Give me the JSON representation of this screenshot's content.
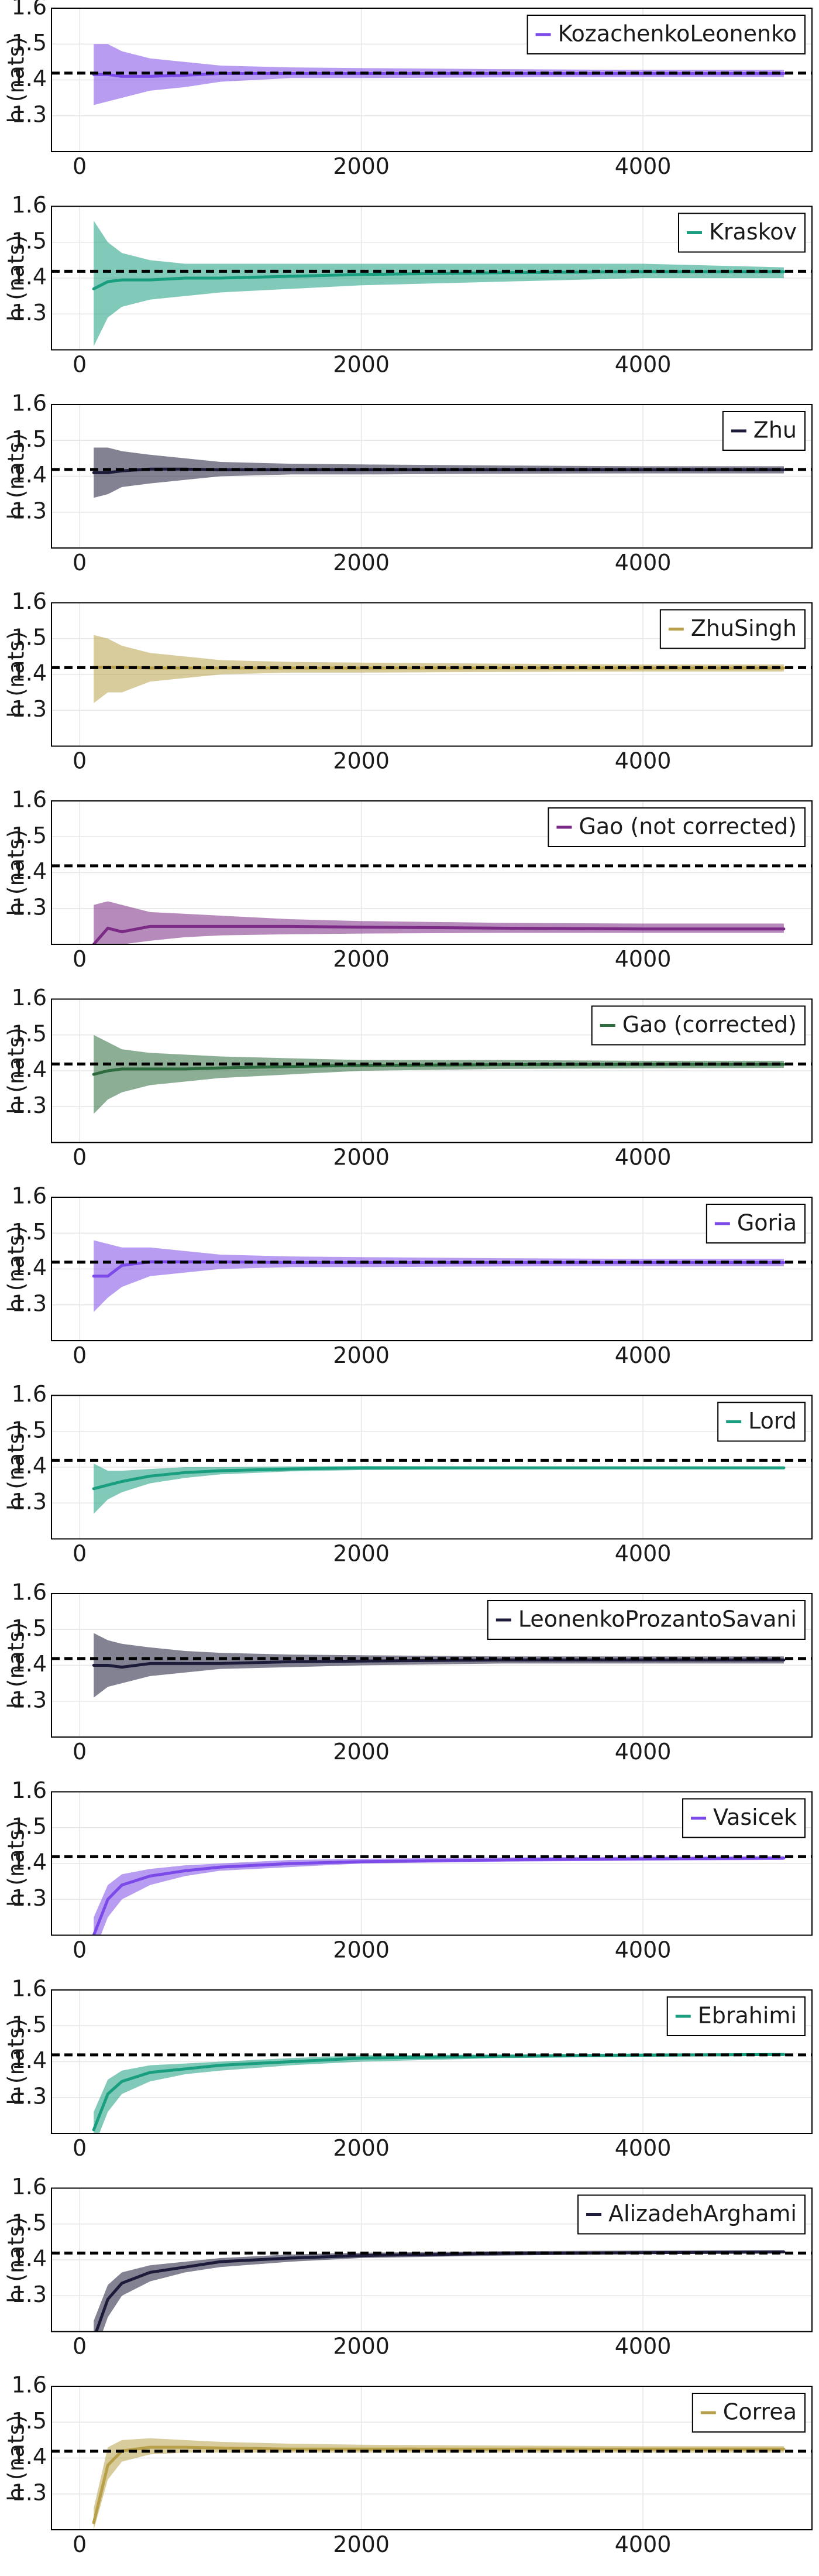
{
  "chart_data": [
    {
      "type": "line",
      "title": "",
      "xlabel": "",
      "ylabel": "h (nats)",
      "xlim": [
        -200,
        5200
      ],
      "ylim": [
        1.2,
        1.6
      ],
      "xticks": [
        0,
        2000,
        4000
      ],
      "yticks": [
        1.3,
        1.4,
        1.5,
        1.6
      ],
      "grid": true,
      "legend_position": "top-right",
      "reference_line": 1.419,
      "series": [
        {
          "name": "KozachenkoLeonenko",
          "color": "#7b4ae8",
          "x": [
            100,
            200,
            300,
            500,
            750,
            1000,
            1500,
            2000,
            3000,
            4000,
            5000
          ],
          "mean": [
            1.415,
            1.415,
            1.41,
            1.41,
            1.413,
            1.418,
            1.418,
            1.418,
            1.418,
            1.418,
            1.418
          ],
          "lower": [
            1.33,
            1.34,
            1.35,
            1.37,
            1.38,
            1.395,
            1.405,
            1.405,
            1.407,
            1.408,
            1.408
          ],
          "upper": [
            1.5,
            1.5,
            1.48,
            1.46,
            1.45,
            1.44,
            1.435,
            1.433,
            1.43,
            1.428,
            1.428
          ]
        }
      ]
    },
    {
      "type": "line",
      "title": "",
      "xlabel": "",
      "ylabel": "h (nats)",
      "xlim": [
        -200,
        5200
      ],
      "ylim": [
        1.2,
        1.6
      ],
      "xticks": [
        0,
        2000,
        4000
      ],
      "yticks": [
        1.3,
        1.4,
        1.5,
        1.6
      ],
      "grid": true,
      "legend_position": "top-right",
      "reference_line": 1.419,
      "series": [
        {
          "name": "Kraskov",
          "color": "#1a9e80",
          "x": [
            100,
            200,
            300,
            500,
            750,
            1000,
            1500,
            2000,
            3000,
            4000,
            5000
          ],
          "mean": [
            1.37,
            1.39,
            1.395,
            1.395,
            1.4,
            1.4,
            1.405,
            1.41,
            1.415,
            1.418,
            1.418
          ],
          "lower": [
            1.21,
            1.29,
            1.32,
            1.34,
            1.35,
            1.36,
            1.37,
            1.38,
            1.39,
            1.4,
            1.4
          ],
          "upper": [
            1.56,
            1.5,
            1.47,
            1.45,
            1.44,
            1.44,
            1.44,
            1.44,
            1.44,
            1.44,
            1.43
          ]
        }
      ]
    },
    {
      "type": "line",
      "title": "",
      "xlabel": "",
      "ylabel": "h (nats)",
      "xlim": [
        -200,
        5200
      ],
      "ylim": [
        1.2,
        1.6
      ],
      "xticks": [
        0,
        2000,
        4000
      ],
      "yticks": [
        1.3,
        1.4,
        1.5,
        1.6
      ],
      "grid": true,
      "legend_position": "top-right",
      "reference_line": 1.419,
      "series": [
        {
          "name": "Zhu",
          "color": "#1c1c3a",
          "x": [
            100,
            200,
            300,
            500,
            750,
            1000,
            1500,
            2000,
            3000,
            4000,
            5000
          ],
          "mean": [
            1.41,
            1.41,
            1.415,
            1.42,
            1.42,
            1.418,
            1.418,
            1.418,
            1.418,
            1.418,
            1.418
          ],
          "lower": [
            1.34,
            1.35,
            1.37,
            1.38,
            1.39,
            1.4,
            1.405,
            1.405,
            1.407,
            1.408,
            1.408
          ],
          "upper": [
            1.48,
            1.48,
            1.47,
            1.46,
            1.45,
            1.44,
            1.435,
            1.433,
            1.43,
            1.428,
            1.428
          ]
        }
      ]
    },
    {
      "type": "line",
      "title": "",
      "xlabel": "",
      "ylabel": "h (nats)",
      "xlim": [
        -200,
        5200
      ],
      "ylim": [
        1.2,
        1.6
      ],
      "xticks": [
        0,
        2000,
        4000
      ],
      "yticks": [
        1.3,
        1.4,
        1.5,
        1.6
      ],
      "grid": true,
      "legend_position": "top-right",
      "reference_line": 1.419,
      "series": [
        {
          "name": "ZhuSingh",
          "color": "#b8a04a",
          "x": [
            100,
            200,
            300,
            500,
            750,
            1000,
            1500,
            2000,
            3000,
            4000,
            5000
          ],
          "mean": [
            1.42,
            1.42,
            1.42,
            1.418,
            1.418,
            1.418,
            1.418,
            1.418,
            1.418,
            1.418,
            1.418
          ],
          "lower": [
            1.32,
            1.35,
            1.35,
            1.38,
            1.39,
            1.4,
            1.405,
            1.405,
            1.407,
            1.408,
            1.408
          ],
          "upper": [
            1.51,
            1.5,
            1.48,
            1.46,
            1.45,
            1.44,
            1.435,
            1.433,
            1.43,
            1.428,
            1.428
          ]
        }
      ]
    },
    {
      "type": "line",
      "title": "",
      "xlabel": "",
      "ylabel": "h (nats)",
      "xlim": [
        -200,
        5200
      ],
      "ylim": [
        1.2,
        1.6
      ],
      "xticks": [
        0,
        2000,
        4000
      ],
      "yticks": [
        1.3,
        1.4,
        1.5,
        1.6
      ],
      "grid": true,
      "legend_position": "top-right",
      "reference_line": 1.419,
      "series": [
        {
          "name": "Gao (not corrected)",
          "color": "#7b2a85",
          "x": [
            100,
            200,
            300,
            500,
            750,
            1000,
            1500,
            2000,
            3000,
            4000,
            5000
          ],
          "mean": [
            1.2,
            1.245,
            1.235,
            1.25,
            1.25,
            1.25,
            1.25,
            1.248,
            1.245,
            1.243,
            1.243
          ],
          "lower": [
            1.18,
            1.19,
            1.2,
            1.21,
            1.22,
            1.225,
            1.228,
            1.23,
            1.232,
            1.232,
            1.232
          ],
          "upper": [
            1.31,
            1.32,
            1.31,
            1.29,
            1.285,
            1.28,
            1.27,
            1.265,
            1.26,
            1.258,
            1.258
          ]
        }
      ]
    },
    {
      "type": "line",
      "title": "",
      "xlabel": "",
      "ylabel": "h (nats)",
      "xlim": [
        -200,
        5200
      ],
      "ylim": [
        1.2,
        1.6
      ],
      "xticks": [
        0,
        2000,
        4000
      ],
      "yticks": [
        1.3,
        1.4,
        1.5,
        1.6
      ],
      "grid": true,
      "legend_position": "top-right",
      "reference_line": 1.419,
      "series": [
        {
          "name": "Gao (corrected)",
          "color": "#2e6b3e",
          "x": [
            100,
            200,
            300,
            500,
            750,
            1000,
            1500,
            2000,
            3000,
            4000,
            5000
          ],
          "mean": [
            1.39,
            1.4,
            1.405,
            1.405,
            1.405,
            1.408,
            1.412,
            1.415,
            1.417,
            1.418,
            1.418
          ],
          "lower": [
            1.28,
            1.32,
            1.34,
            1.36,
            1.37,
            1.38,
            1.39,
            1.4,
            1.405,
            1.407,
            1.408
          ],
          "upper": [
            1.5,
            1.48,
            1.46,
            1.45,
            1.445,
            1.44,
            1.435,
            1.43,
            1.43,
            1.428,
            1.428
          ]
        }
      ]
    },
    {
      "type": "line",
      "title": "",
      "xlabel": "",
      "ylabel": "h (nats)",
      "xlim": [
        -200,
        5200
      ],
      "ylim": [
        1.2,
        1.6
      ],
      "xticks": [
        0,
        2000,
        4000
      ],
      "yticks": [
        1.3,
        1.4,
        1.5,
        1.6
      ],
      "grid": true,
      "legend_position": "top-right",
      "reference_line": 1.419,
      "series": [
        {
          "name": "Goria",
          "color": "#7b4ae8",
          "x": [
            100,
            200,
            300,
            500,
            750,
            1000,
            1500,
            2000,
            3000,
            4000,
            5000
          ],
          "mean": [
            1.38,
            1.38,
            1.41,
            1.42,
            1.42,
            1.42,
            1.418,
            1.418,
            1.418,
            1.418,
            1.418
          ],
          "lower": [
            1.28,
            1.32,
            1.35,
            1.38,
            1.39,
            1.4,
            1.405,
            1.405,
            1.407,
            1.408,
            1.408
          ],
          "upper": [
            1.48,
            1.47,
            1.46,
            1.46,
            1.45,
            1.44,
            1.435,
            1.433,
            1.43,
            1.428,
            1.428
          ]
        }
      ]
    },
    {
      "type": "line",
      "title": "",
      "xlabel": "",
      "ylabel": "h (nats)",
      "xlim": [
        -200,
        5200
      ],
      "ylim": [
        1.2,
        1.6
      ],
      "xticks": [
        0,
        2000,
        4000
      ],
      "yticks": [
        1.3,
        1.4,
        1.5,
        1.6
      ],
      "grid": true,
      "legend_position": "top-right",
      "reference_line": 1.419,
      "series": [
        {
          "name": "Lord",
          "color": "#1a9e80",
          "x": [
            100,
            200,
            300,
            500,
            750,
            1000,
            1500,
            2000,
            3000,
            4000,
            5000
          ],
          "mean": [
            1.34,
            1.35,
            1.36,
            1.375,
            1.385,
            1.39,
            1.395,
            1.398,
            1.398,
            1.398,
            1.398
          ],
          "lower": [
            1.27,
            1.31,
            1.33,
            1.355,
            1.37,
            1.38,
            1.388,
            1.392,
            1.394,
            1.395,
            1.395
          ],
          "upper": [
            1.41,
            1.39,
            1.39,
            1.395,
            1.4,
            1.4,
            1.402,
            1.403,
            1.402,
            1.402,
            1.402
          ]
        }
      ]
    },
    {
      "type": "line",
      "title": "",
      "xlabel": "",
      "ylabel": "h (nats)",
      "xlim": [
        -200,
        5200
      ],
      "ylim": [
        1.2,
        1.6
      ],
      "xticks": [
        0,
        2000,
        4000
      ],
      "yticks": [
        1.3,
        1.4,
        1.5,
        1.6
      ],
      "grid": true,
      "legend_position": "top-right",
      "reference_line": 1.419,
      "series": [
        {
          "name": "LeonenkoProzantoSavani",
          "color": "#1c1c3a",
          "x": [
            100,
            200,
            300,
            500,
            750,
            1000,
            1500,
            2000,
            3000,
            4000,
            5000
          ],
          "mean": [
            1.4,
            1.4,
            1.395,
            1.405,
            1.405,
            1.405,
            1.41,
            1.412,
            1.415,
            1.415,
            1.415
          ],
          "lower": [
            1.31,
            1.34,
            1.35,
            1.37,
            1.38,
            1.39,
            1.395,
            1.4,
            1.405,
            1.405,
            1.405
          ],
          "upper": [
            1.49,
            1.47,
            1.46,
            1.45,
            1.44,
            1.435,
            1.43,
            1.428,
            1.425,
            1.425,
            1.425
          ]
        }
      ]
    },
    {
      "type": "line",
      "title": "",
      "xlabel": "",
      "ylabel": "h (nats)",
      "xlim": [
        -200,
        5200
      ],
      "ylim": [
        1.2,
        1.6
      ],
      "xticks": [
        0,
        2000,
        4000
      ],
      "yticks": [
        1.3,
        1.4,
        1.5,
        1.6
      ],
      "grid": true,
      "legend_position": "top-right",
      "reference_line": 1.419,
      "series": [
        {
          "name": "Vasicek",
          "color": "#7b4ae8",
          "x": [
            100,
            200,
            300,
            500,
            750,
            1000,
            1500,
            2000,
            3000,
            4000,
            5000
          ],
          "mean": [
            1.2,
            1.3,
            1.34,
            1.365,
            1.38,
            1.39,
            1.4,
            1.405,
            1.41,
            1.413,
            1.415
          ],
          "lower": [
            1.15,
            1.25,
            1.3,
            1.34,
            1.365,
            1.38,
            1.39,
            1.4,
            1.405,
            1.408,
            1.41
          ],
          "upper": [
            1.25,
            1.34,
            1.37,
            1.385,
            1.395,
            1.4,
            1.41,
            1.413,
            1.417,
            1.419,
            1.42
          ]
        }
      ]
    },
    {
      "type": "line",
      "title": "",
      "xlabel": "",
      "ylabel": "h (nats)",
      "xlim": [
        -200,
        5200
      ],
      "ylim": [
        1.2,
        1.6
      ],
      "xticks": [
        0,
        2000,
        4000
      ],
      "yticks": [
        1.3,
        1.4,
        1.5,
        1.6
      ],
      "grid": true,
      "legend_position": "top-right",
      "reference_line": 1.419,
      "series": [
        {
          "name": "Ebrahimi",
          "color": "#1a9e80",
          "x": [
            100,
            200,
            300,
            500,
            750,
            1000,
            1500,
            2000,
            3000,
            4000,
            5000
          ],
          "mean": [
            1.21,
            1.31,
            1.345,
            1.37,
            1.38,
            1.39,
            1.4,
            1.41,
            1.415,
            1.418,
            1.42
          ],
          "lower": [
            1.16,
            1.26,
            1.31,
            1.345,
            1.365,
            1.375,
            1.39,
            1.4,
            1.41,
            1.414,
            1.416
          ],
          "upper": [
            1.26,
            1.35,
            1.375,
            1.39,
            1.395,
            1.4,
            1.41,
            1.418,
            1.42,
            1.423,
            1.424
          ]
        }
      ]
    },
    {
      "type": "line",
      "title": "",
      "xlabel": "",
      "ylabel": "h (nats)",
      "xlim": [
        -200,
        5200
      ],
      "ylim": [
        1.2,
        1.6
      ],
      "xticks": [
        0,
        2000,
        4000
      ],
      "yticks": [
        1.3,
        1.4,
        1.5,
        1.6
      ],
      "grid": true,
      "legend_position": "top-right",
      "reference_line": 1.419,
      "series": [
        {
          "name": "AlizadehArghami",
          "color": "#1c1c3a",
          "x": [
            100,
            200,
            300,
            500,
            750,
            1000,
            1500,
            2000,
            3000,
            4000,
            5000
          ],
          "mean": [
            1.18,
            1.29,
            1.335,
            1.365,
            1.38,
            1.395,
            1.405,
            1.412,
            1.418,
            1.42,
            1.422
          ],
          "lower": [
            1.13,
            1.24,
            1.3,
            1.34,
            1.365,
            1.38,
            1.395,
            1.405,
            1.412,
            1.416,
            1.418
          ],
          "upper": [
            1.23,
            1.33,
            1.365,
            1.385,
            1.395,
            1.405,
            1.415,
            1.42,
            1.424,
            1.426,
            1.427
          ]
        }
      ]
    },
    {
      "type": "line",
      "title": "",
      "xlabel": "",
      "ylabel": "h (nats)",
      "xlim": [
        -200,
        5200
      ],
      "ylim": [
        1.2,
        1.6
      ],
      "xticks": [
        0,
        2000,
        4000
      ],
      "yticks": [
        1.3,
        1.4,
        1.5,
        1.6
      ],
      "grid": true,
      "legend_position": "top-right",
      "reference_line": 1.419,
      "series": [
        {
          "name": "Correa",
          "color": "#b8a04a",
          "x": [
            100,
            200,
            300,
            500,
            750,
            1000,
            1500,
            2000,
            3000,
            4000,
            5000
          ],
          "mean": [
            1.22,
            1.38,
            1.42,
            1.43,
            1.43,
            1.428,
            1.425,
            1.425,
            1.425,
            1.425,
            1.425
          ],
          "lower": [
            1.2,
            1.34,
            1.39,
            1.41,
            1.415,
            1.415,
            1.415,
            1.415,
            1.415,
            1.415,
            1.415
          ],
          "upper": [
            1.26,
            1.43,
            1.45,
            1.455,
            1.45,
            1.445,
            1.44,
            1.437,
            1.435,
            1.433,
            1.433
          ]
        }
      ]
    }
  ]
}
